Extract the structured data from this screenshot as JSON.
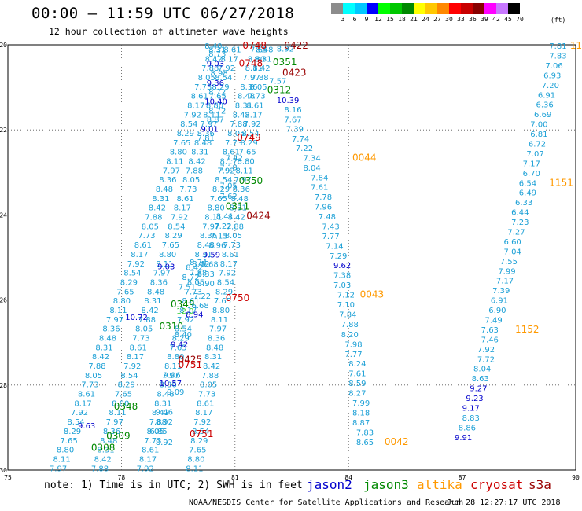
{
  "title": "00:00 – 11:59 UTC 06/27/2018",
  "subtitle": "12 hour collection of altimeter wave heights",
  "legend": {
    "unit": "(ft)",
    "labels": [
      "3",
      "6",
      "9",
      "12",
      "15",
      "18",
      "21",
      "24",
      "27",
      "30",
      "33",
      "36",
      "39",
      "42",
      "45",
      "70"
    ],
    "colors": [
      "#8c8c8c",
      "#00ffff",
      "#00c8ff",
      "#0000ff",
      "#00ff00",
      "#00c800",
      "#008800",
      "#ffff00",
      "#ffc800",
      "#ff8800",
      "#ff0000",
      "#c80000",
      "#880000",
      "#ff00ff",
      "#c878ff",
      "#000000"
    ]
  },
  "note": "note:  1) Time is in UTC;  2) SWH is in feet",
  "satellites": [
    {
      "name": "jason2",
      "color": "#0000cc"
    },
    {
      "name": "jason3",
      "color": "#008800"
    },
    {
      "name": "altika",
      "color": "#ff9900"
    },
    {
      "name": "cryosat",
      "color": "#cc0000"
    },
    {
      "name": "s3a",
      "color": "#990000"
    }
  ],
  "footer": {
    "left": "NOAA/NESDIS Center for Satellite Applications and Research",
    "right": "Jun 28 12:27:17 UTC 2018"
  },
  "map": {
    "lon_range": [
      75,
      90
    ],
    "lat_range": [
      -30,
      -20
    ],
    "lon_ticks": [
      "75",
      "78",
      "81",
      "84",
      "87",
      "90"
    ],
    "lat_ticks": [
      "-20",
      "-22",
      "-24",
      "-26",
      "-28",
      "-30"
    ],
    "grid": "dotted",
    "labels": [
      {
        "t": "8.40",
        "lon": 80.2,
        "lat": -20.02,
        "c": "#1ca0d6"
      },
      {
        "t": "0748",
        "lon": 81.2,
        "lat": -20.02,
        "c": "#cc0000"
      },
      {
        "t": "0422",
        "lon": 82.3,
        "lat": -20.02,
        "c": "#990000"
      },
      {
        "t": "8.73",
        "lon": 80.3,
        "lat": -20.2,
        "c": "#1ca0d6"
      },
      {
        "t": "8.92",
        "lon": 82.1,
        "lat": -20.08,
        "c": "#1ca0d6"
      },
      {
        "t": "9.03",
        "lon": 80.25,
        "lat": -20.43,
        "c": "#0000cc"
      },
      {
        "t": "0748",
        "lon": 81.1,
        "lat": -20.43,
        "c": "#cc0000"
      },
      {
        "t": "0351",
        "lon": 82.0,
        "lat": -20.41,
        "c": "#008800"
      },
      {
        "t": "8.98",
        "lon": 80.35,
        "lat": -20.66,
        "c": "#1ca0d6"
      },
      {
        "t": "0423",
        "lon": 82.25,
        "lat": -20.66,
        "c": "#990000"
      },
      {
        "t": "9.36",
        "lon": 80.25,
        "lat": -20.89,
        "c": "#0000cc"
      },
      {
        "t": "7.57",
        "lon": 81.9,
        "lat": -20.84,
        "c": "#1ca0d6"
      },
      {
        "t": "8.72",
        "lon": 80.3,
        "lat": -21.1,
        "c": "#1ca0d6"
      },
      {
        "t": "0312",
        "lon": 81.85,
        "lat": -21.06,
        "c": "#008800"
      },
      {
        "t": "10.40",
        "lon": 80.2,
        "lat": -21.32,
        "c": "#0000cc"
      },
      {
        "t": "10.39",
        "lon": 82.1,
        "lat": -21.29,
        "c": "#0000cc"
      },
      {
        "t": "8.72",
        "lon": 80.3,
        "lat": -21.54,
        "c": "#1ca0d6"
      },
      {
        "t": "8.16",
        "lon": 82.3,
        "lat": -21.52,
        "c": "#1ca0d6"
      },
      {
        "t": "8.87",
        "lon": 80.25,
        "lat": -21.75,
        "c": "#1ca0d6"
      },
      {
        "t": "7.67",
        "lon": 82.3,
        "lat": -21.75,
        "c": "#1ca0d6"
      },
      {
        "t": "9.01",
        "lon": 80.1,
        "lat": -21.97,
        "c": "#0000cc"
      },
      {
        "t": "7.39",
        "lon": 82.35,
        "lat": -21.97,
        "c": "#1ca0d6"
      },
      {
        "t": "7.81",
        "lon": 80.0,
        "lat": -22.18,
        "c": "#1ca0d6"
      },
      {
        "t": "0749",
        "lon": 81.05,
        "lat": -22.18,
        "c": "#cc0000"
      },
      {
        "t": "7.74",
        "lon": 82.5,
        "lat": -22.2,
        "c": "#1ca0d6"
      },
      {
        "t": "7.22",
        "lon": 82.6,
        "lat": -22.42,
        "c": "#1ca0d6"
      },
      {
        "t": "7.34",
        "lon": 82.8,
        "lat": -22.65,
        "c": "#1ca0d6"
      },
      {
        "t": "0044",
        "lon": 84.1,
        "lat": -22.65,
        "c": "#ff9900"
      },
      {
        "t": "7.42",
        "lon": 80.75,
        "lat": -22.65,
        "c": "#1ca0d6"
      },
      {
        "t": "7.18",
        "lon": 80.6,
        "lat": -22.87,
        "c": "#1ca0d6"
      },
      {
        "t": "8.04",
        "lon": 82.8,
        "lat": -22.88,
        "c": "#1ca0d6"
      },
      {
        "t": "7.84",
        "lon": 83.0,
        "lat": -23.11,
        "c": "#1ca0d6"
      },
      {
        "t": "0350",
        "lon": 81.1,
        "lat": -23.2,
        "c": "#008800"
      },
      {
        "t": "7.05",
        "lon": 80.6,
        "lat": -23.3,
        "c": "#1ca0d6"
      },
      {
        "t": "7.61",
        "lon": 83.0,
        "lat": -23.34,
        "c": "#1ca0d6"
      },
      {
        "t": "7.62",
        "lon": 80.6,
        "lat": -23.55,
        "c": "#1ca0d6"
      },
      {
        "t": "7.78",
        "lon": 83.1,
        "lat": -23.57,
        "c": "#1ca0d6"
      },
      {
        "t": "0311",
        "lon": 80.75,
        "lat": -23.8,
        "c": "#008800"
      },
      {
        "t": "7.96",
        "lon": 83.1,
        "lat": -23.8,
        "c": "#1ca0d6"
      },
      {
        "t": "0424",
        "lon": 81.3,
        "lat": -24.02,
        "c": "#990000"
      },
      {
        "t": "8.41",
        "lon": 80.5,
        "lat": -24.02,
        "c": "#1ca0d6"
      },
      {
        "t": "7.48",
        "lon": 83.2,
        "lat": -24.03,
        "c": "#1ca0d6"
      },
      {
        "t": "7.22",
        "lon": 80.45,
        "lat": -24.25,
        "c": "#1ca0d6"
      },
      {
        "t": "7.43",
        "lon": 83.3,
        "lat": -24.26,
        "c": "#1ca0d6"
      },
      {
        "t": "7.15",
        "lon": 80.35,
        "lat": -24.48,
        "c": "#1ca0d6"
      },
      {
        "t": "7.77",
        "lon": 83.3,
        "lat": -24.49,
        "c": "#1ca0d6"
      },
      {
        "t": "8.96",
        "lon": 80.3,
        "lat": -24.7,
        "c": "#1ca0d6"
      },
      {
        "t": "7.14",
        "lon": 83.4,
        "lat": -24.72,
        "c": "#1ca0d6"
      },
      {
        "t": "9.59",
        "lon": 80.15,
        "lat": -24.93,
        "c": "#0000cc"
      },
      {
        "t": "7.29",
        "lon": 83.5,
        "lat": -24.95,
        "c": "#1ca0d6"
      },
      {
        "t": "8.74",
        "lon": 79.8,
        "lat": -25.1,
        "c": "#1ca0d6"
      },
      {
        "t": "5.68",
        "lon": 80.1,
        "lat": -25.15,
        "c": "#1ca0d6"
      },
      {
        "t": "9.62",
        "lon": 83.6,
        "lat": -25.18,
        "c": "#0000cc"
      },
      {
        "t": "9.03",
        "lon": 78.95,
        "lat": -25.2,
        "c": "#0000cc"
      },
      {
        "t": "8.42",
        "lon": 79.7,
        "lat": -25.22,
        "c": "#1ca0d6"
      },
      {
        "t": "6.33",
        "lon": 80.0,
        "lat": -25.38,
        "c": "#1ca0d6"
      },
      {
        "t": "7.38",
        "lon": 83.6,
        "lat": -25.41,
        "c": "#1ca0d6"
      },
      {
        "t": "8.72",
        "lon": 79.6,
        "lat": -25.45,
        "c": "#1ca0d6"
      },
      {
        "t": "8.90",
        "lon": 80.0,
        "lat": -25.6,
        "c": "#1ca0d6"
      },
      {
        "t": "0750",
        "lon": 80.75,
        "lat": -25.95,
        "c": "#cc0000"
      },
      {
        "t": "7.03",
        "lon": 83.6,
        "lat": -25.64,
        "c": "#1ca0d6"
      },
      {
        "t": "7.51",
        "lon": 79.5,
        "lat": -25.68,
        "c": "#1ca0d6"
      },
      {
        "t": "0349",
        "lon": 79.3,
        "lat": -26.1,
        "c": "#008800"
      },
      {
        "t": "7.12",
        "lon": 83.7,
        "lat": -25.87,
        "c": "#1ca0d6"
      },
      {
        "t": "0043",
        "lon": 84.3,
        "lat": -25.87,
        "c": "#ff9900"
      },
      {
        "t": "7.22",
        "lon": 79.9,
        "lat": -25.9,
        "c": "#1ca0d6"
      },
      {
        "t": "6.68",
        "lon": 79.85,
        "lat": -26.12,
        "c": "#1ca0d6"
      },
      {
        "t": "7.10",
        "lon": 83.7,
        "lat": -26.1,
        "c": "#1ca0d6"
      },
      {
        "t": "12.0",
        "lon": 79.45,
        "lat": -26.25,
        "c": "#33cc33"
      },
      {
        "t": "8.94",
        "lon": 79.7,
        "lat": -26.33,
        "c": "#0000cc"
      },
      {
        "t": "7.84",
        "lon": 83.75,
        "lat": -26.33,
        "c": "#1ca0d6"
      },
      {
        "t": "10.72",
        "lon": 78.1,
        "lat": -26.4,
        "c": "#0000cc"
      },
      {
        "t": "0310",
        "lon": 79.0,
        "lat": -26.62,
        "c": "#008800"
      },
      {
        "t": "7.88",
        "lon": 83.8,
        "lat": -26.56,
        "c": "#1ca0d6"
      },
      {
        "t": "8.40",
        "lon": 79.4,
        "lat": -26.8,
        "c": "#1ca0d6"
      },
      {
        "t": "8.20",
        "lon": 83.8,
        "lat": -26.8,
        "c": "#1ca0d6"
      },
      {
        "t": "9.42",
        "lon": 79.3,
        "lat": -27.03,
        "c": "#0000cc"
      },
      {
        "t": "7.98",
        "lon": 83.9,
        "lat": -27.03,
        "c": "#1ca0d6"
      },
      {
        "t": "7.77",
        "lon": 83.9,
        "lat": -27.26,
        "c": "#1ca0d6"
      },
      {
        "t": "0425",
        "lon": 79.5,
        "lat": -27.4,
        "c": "#990000"
      },
      {
        "t": "0751",
        "lon": 79.5,
        "lat": -27.52,
        "c": "#cc0000"
      },
      {
        "t": "8.24",
        "lon": 84.0,
        "lat": -27.49,
        "c": "#1ca0d6"
      },
      {
        "t": "9.06",
        "lon": 79.1,
        "lat": -27.75,
        "c": "#1ca0d6"
      },
      {
        "t": "10.57",
        "lon": 79.0,
        "lat": -27.95,
        "c": "#0000cc"
      },
      {
        "t": "7.61",
        "lon": 84.0,
        "lat": -27.72,
        "c": "#1ca0d6"
      },
      {
        "t": "8.59",
        "lon": 84.0,
        "lat": -27.95,
        "c": "#1ca0d6"
      },
      {
        "t": "9.09",
        "lon": 79.2,
        "lat": -28.15,
        "c": "#1ca0d6"
      },
      {
        "t": "8.27",
        "lon": 84.0,
        "lat": -28.18,
        "c": "#1ca0d6"
      },
      {
        "t": "7.99",
        "lon": 84.1,
        "lat": -28.41,
        "c": "#1ca0d6"
      },
      {
        "t": "0348",
        "lon": 77.8,
        "lat": -28.5,
        "c": "#008800"
      },
      {
        "t": "9.46",
        "lon": 78.9,
        "lat": -28.62,
        "c": "#1ca0d6"
      },
      {
        "t": "8.18",
        "lon": 84.1,
        "lat": -28.64,
        "c": "#1ca0d6"
      },
      {
        "t": "8.92",
        "lon": 78.9,
        "lat": -28.85,
        "c": "#1ca0d6"
      },
      {
        "t": "8.87",
        "lon": 84.1,
        "lat": -28.87,
        "c": "#1ca0d6"
      },
      {
        "t": "9.63",
        "lon": 76.85,
        "lat": -28.95,
        "c": "#0000cc"
      },
      {
        "t": "0751",
        "lon": 79.8,
        "lat": -29.15,
        "c": "#cc0000"
      },
      {
        "t": "6.85",
        "lon": 78.75,
        "lat": -29.08,
        "c": "#1ca0d6"
      },
      {
        "t": "7.83",
        "lon": 84.2,
        "lat": -29.1,
        "c": "#1ca0d6"
      },
      {
        "t": "0309",
        "lon": 77.6,
        "lat": -29.2,
        "c": "#008800"
      },
      {
        "t": "8.92",
        "lon": 78.9,
        "lat": -29.33,
        "c": "#1ca0d6"
      },
      {
        "t": "0308",
        "lon": 77.2,
        "lat": -29.47,
        "c": "#008800"
      },
      {
        "t": "8.65",
        "lon": 84.2,
        "lat": -29.33,
        "c": "#1ca0d6"
      },
      {
        "t": "0042",
        "lon": 84.95,
        "lat": -29.33,
        "c": "#ff9900"
      },
      {
        "t": "7.81",
        "lon": 89.3,
        "lat": -20.02,
        "c": "#1ca0d6"
      },
      {
        "t": "1151",
        "lon": 89.85,
        "lat": -20.02,
        "c": "#ff9900"
      },
      {
        "t": "7.83",
        "lon": 89.3,
        "lat": -20.25,
        "c": "#1ca0d6"
      },
      {
        "t": "7.06",
        "lon": 89.2,
        "lat": -20.48,
        "c": "#1ca0d6"
      },
      {
        "t": "6.93",
        "lon": 89.15,
        "lat": -20.71,
        "c": "#1ca0d6"
      },
      {
        "t": "7.20",
        "lon": 89.1,
        "lat": -20.94,
        "c": "#1ca0d6"
      },
      {
        "t": "6.91",
        "lon": 89.0,
        "lat": -21.17,
        "c": "#1ca0d6"
      },
      {
        "t": "6.36",
        "lon": 88.95,
        "lat": -21.4,
        "c": "#1ca0d6"
      },
      {
        "t": "6.69",
        "lon": 88.9,
        "lat": -21.63,
        "c": "#1ca0d6"
      },
      {
        "t": "7.00",
        "lon": 88.8,
        "lat": -21.86,
        "c": "#1ca0d6"
      },
      {
        "t": "6.81",
        "lon": 88.8,
        "lat": -22.09,
        "c": "#1ca0d6"
      },
      {
        "t": "6.72",
        "lon": 88.75,
        "lat": -22.32,
        "c": "#1ca0d6"
      },
      {
        "t": "7.07",
        "lon": 88.7,
        "lat": -22.55,
        "c": "#1ca0d6"
      },
      {
        "t": "7.17",
        "lon": 88.6,
        "lat": -22.78,
        "c": "#1ca0d6"
      },
      {
        "t": "6.70",
        "lon": 88.6,
        "lat": -23.01,
        "c": "#1ca0d6"
      },
      {
        "t": "6.54",
        "lon": 88.5,
        "lat": -23.24,
        "c": "#1ca0d6"
      },
      {
        "t": "1151",
        "lon": 89.3,
        "lat": -23.24,
        "c": "#ff9900"
      },
      {
        "t": "6.49",
        "lon": 88.5,
        "lat": -23.47,
        "c": "#1ca0d6"
      },
      {
        "t": "6.33",
        "lon": 88.4,
        "lat": -23.7,
        "c": "#1ca0d6"
      },
      {
        "t": "6.44",
        "lon": 88.3,
        "lat": -23.93,
        "c": "#1ca0d6"
      },
      {
        "t": "7.23",
        "lon": 88.3,
        "lat": -24.16,
        "c": "#1ca0d6"
      },
      {
        "t": "7.27",
        "lon": 88.2,
        "lat": -24.39,
        "c": "#1ca0d6"
      },
      {
        "t": "6.60",
        "lon": 88.1,
        "lat": -24.62,
        "c": "#1ca0d6"
      },
      {
        "t": "7.04",
        "lon": 88.1,
        "lat": -24.85,
        "c": "#1ca0d6"
      },
      {
        "t": "7.55",
        "lon": 88.0,
        "lat": -25.08,
        "c": "#1ca0d6"
      },
      {
        "t": "7.99",
        "lon": 87.95,
        "lat": -25.31,
        "c": "#1ca0d6"
      },
      {
        "t": "7.17",
        "lon": 87.9,
        "lat": -25.54,
        "c": "#1ca0d6"
      },
      {
        "t": "7.39",
        "lon": 87.8,
        "lat": -25.77,
        "c": "#1ca0d6"
      },
      {
        "t": "6.91",
        "lon": 87.75,
        "lat": -26.0,
        "c": "#1ca0d6"
      },
      {
        "t": "6.90",
        "lon": 87.7,
        "lat": -26.23,
        "c": "#1ca0d6"
      },
      {
        "t": "7.49",
        "lon": 87.6,
        "lat": -26.46,
        "c": "#1ca0d6"
      },
      {
        "t": "7.63",
        "lon": 87.5,
        "lat": -26.69,
        "c": "#1ca0d6"
      },
      {
        "t": "1152",
        "lon": 88.4,
        "lat": -26.69,
        "c": "#ff9900"
      },
      {
        "t": "7.46",
        "lon": 87.5,
        "lat": -26.92,
        "c": "#1ca0d6"
      },
      {
        "t": "7.92",
        "lon": 87.4,
        "lat": -27.15,
        "c": "#1ca0d6"
      },
      {
        "t": "7.72",
        "lon": 87.4,
        "lat": -27.38,
        "c": "#1ca0d6"
      },
      {
        "t": "8.04",
        "lon": 87.3,
        "lat": -27.61,
        "c": "#1ca0d6"
      },
      {
        "t": "8.63",
        "lon": 87.25,
        "lat": -27.84,
        "c": "#1ca0d6"
      },
      {
        "t": "9.27",
        "lon": 87.2,
        "lat": -28.07,
        "c": "#0000cc"
      },
      {
        "t": "9.23",
        "lon": 87.1,
        "lat": -28.3,
        "c": "#0000cc"
      },
      {
        "t": "9.17",
        "lon": 87.0,
        "lat": -28.53,
        "c": "#0000cc"
      },
      {
        "t": "8.83",
        "lon": 87.0,
        "lat": -28.76,
        "c": "#1ca0d6"
      },
      {
        "t": "8.86",
        "lon": 86.9,
        "lat": -28.99,
        "c": "#1ca0d6"
      },
      {
        "t": "9.91",
        "lon": 86.8,
        "lat": -29.22,
        "c": "#0000cc"
      }
    ],
    "dense_tracks": [
      {
        "from": [
          80.3,
          -20.1
        ],
        "to": [
          76.1,
          -29.95
        ],
        "c": "#1ca0d6",
        "n": 46
      },
      {
        "from": [
          80.7,
          -20.1
        ],
        "to": [
          77.2,
          -29.95
        ],
        "c": "#1ca0d6",
        "n": 46
      },
      {
        "from": [
          81.4,
          -20.1
        ],
        "to": [
          78.4,
          -29.95
        ],
        "c": "#1ca0d6",
        "n": 46
      },
      {
        "from": [
          81.55,
          -20.1
        ],
        "to": [
          79.7,
          -29.95
        ],
        "c": "#1ca0d6",
        "n": 46
      }
    ],
    "dense_values": [
      "8.31",
      "8.42",
      "7.88",
      "8.05",
      "7.73",
      "8.61",
      "8.17",
      "7.92",
      "8.54",
      "8.29",
      "7.65",
      "8.80",
      "8.11",
      "7.97",
      "8.36",
      "8.48"
    ]
  }
}
